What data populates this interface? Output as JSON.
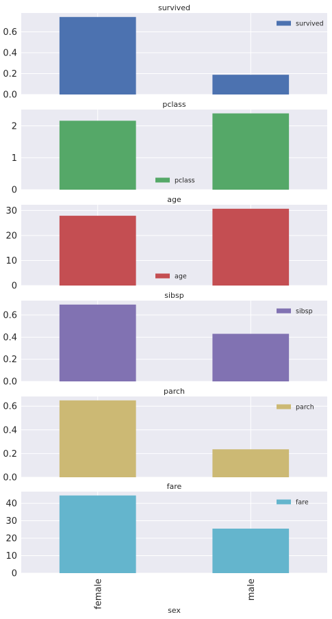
{
  "chart_data": {
    "type": "bar",
    "categories": [
      "female",
      "male"
    ],
    "xlabel": "sex",
    "subplots": [
      {
        "title": "survived",
        "series_name": "survived",
        "values": [
          0.742,
          0.189
        ],
        "ylim": [
          0,
          0.78
        ],
        "yticks": [
          0.0,
          0.2,
          0.4,
          0.6
        ],
        "tick_labels": [
          "0.0",
          "0.2",
          "0.4",
          "0.6"
        ],
        "color": "#4c72b0",
        "legend_loc": "upper right"
      },
      {
        "title": "pclass",
        "series_name": "pclass",
        "values": [
          2.16,
          2.39
        ],
        "ylim": [
          0,
          2.51
        ],
        "yticks": [
          0,
          1,
          2
        ],
        "tick_labels": [
          "0",
          "1",
          "2"
        ],
        "color": "#55a868",
        "legend_loc": "lower center"
      },
      {
        "title": "age",
        "series_name": "age",
        "values": [
          27.9,
          30.7
        ],
        "ylim": [
          0,
          32.3
        ],
        "yticks": [
          0,
          10,
          20,
          30
        ],
        "tick_labels": [
          "0",
          "10",
          "20",
          "30"
        ],
        "color": "#c44e52",
        "legend_loc": "lower center"
      },
      {
        "title": "sibsp",
        "series_name": "sibsp",
        "values": [
          0.694,
          0.43
        ],
        "ylim": [
          0,
          0.73
        ],
        "yticks": [
          0.0,
          0.2,
          0.4,
          0.6
        ],
        "tick_labels": [
          "0.0",
          "0.2",
          "0.4",
          "0.6"
        ],
        "color": "#8172b2",
        "legend_loc": "upper right"
      },
      {
        "title": "parch",
        "series_name": "parch",
        "values": [
          0.649,
          0.236
        ],
        "ylim": [
          0,
          0.682
        ],
        "yticks": [
          0.0,
          0.2,
          0.4,
          0.6
        ],
        "tick_labels": [
          "0.0",
          "0.2",
          "0.4",
          "0.6"
        ],
        "color": "#ccb974",
        "legend_loc": "upper right"
      },
      {
        "title": "fare",
        "series_name": "fare",
        "values": [
          44.5,
          25.5
        ],
        "ylim": [
          0,
          46.7
        ],
        "yticks": [
          0,
          10,
          20,
          30,
          40
        ],
        "tick_labels": [
          "0",
          "10",
          "20",
          "30",
          "40"
        ],
        "color": "#64b5cd",
        "legend_loc": "upper right"
      }
    ],
    "grid": true,
    "background": "#eaeaf2",
    "gridline_color": "#ffffff"
  }
}
